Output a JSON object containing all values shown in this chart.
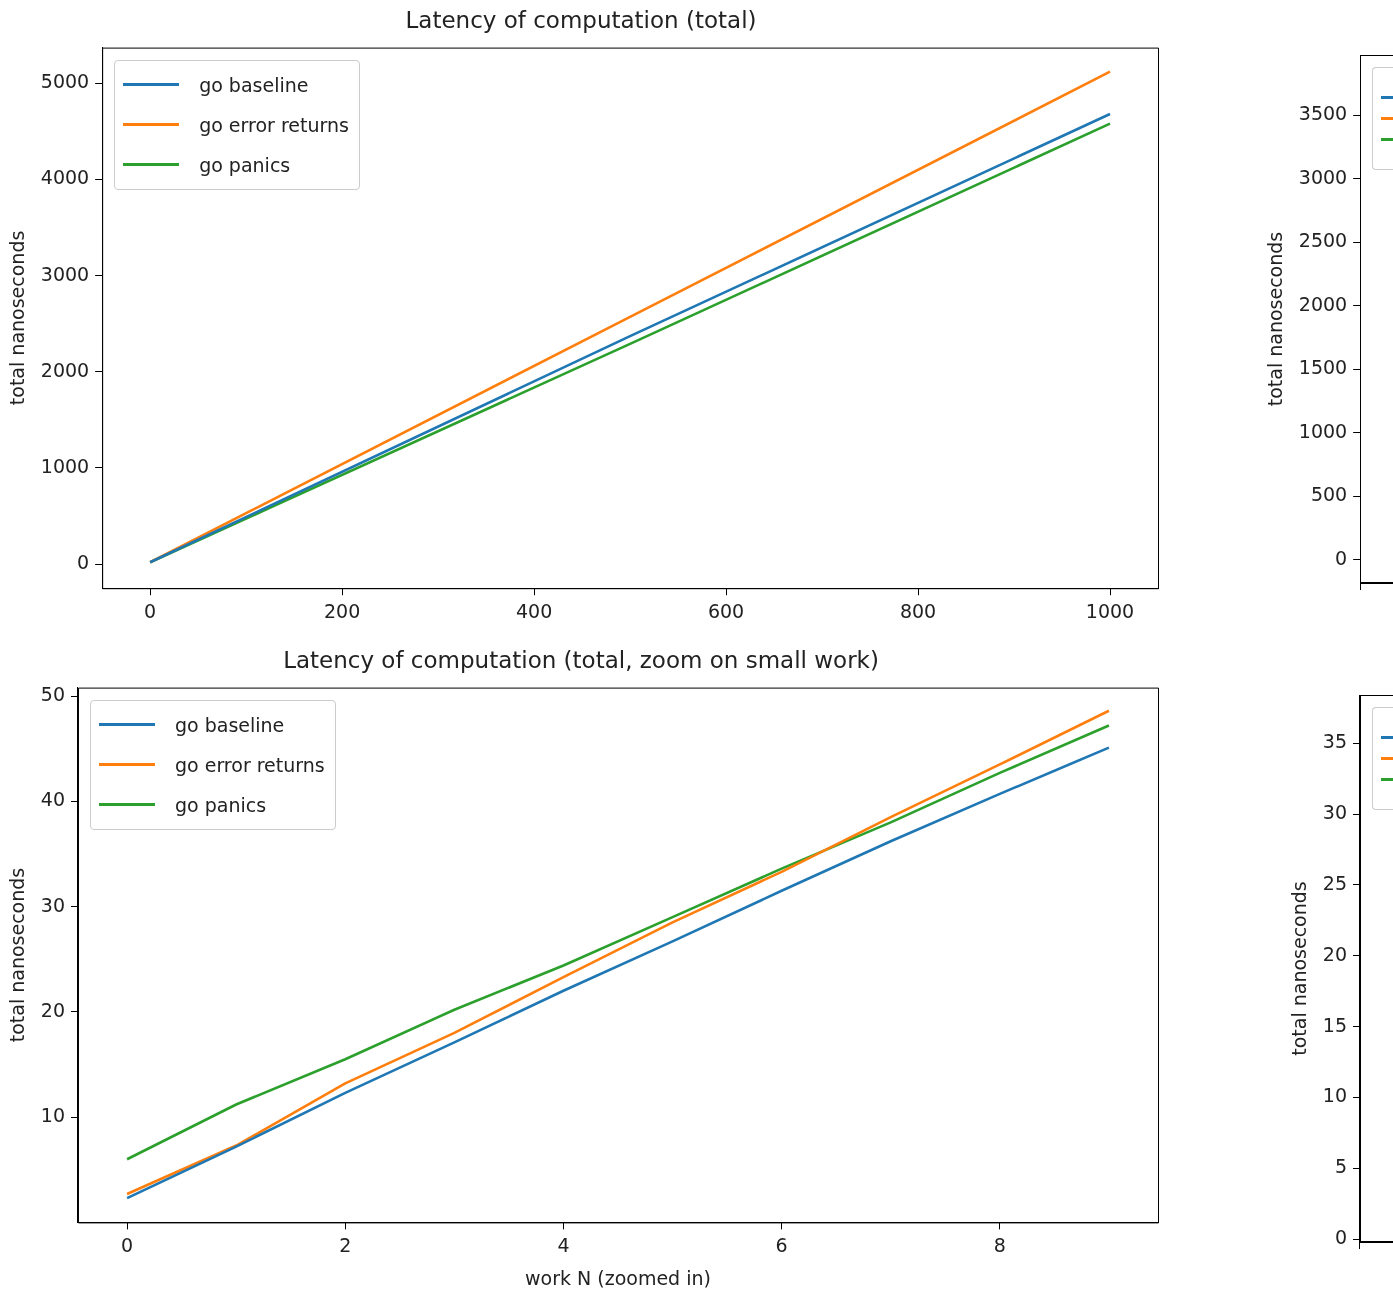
{
  "chart_data": [
    {
      "type": "line",
      "title": "Latency of computation (total)",
      "ylabel": "total nanoseconds",
      "x": [
        0,
        500,
        1000
      ],
      "xlim": [
        -50,
        1050
      ],
      "xticks": [
        0,
        200,
        400,
        600,
        800,
        1000
      ],
      "ylim": [
        -250,
        5370
      ],
      "yticks": [
        0,
        1000,
        2000,
        3000,
        4000,
        5000
      ],
      "grid": false,
      "legend": "top left",
      "marker": "none",
      "line_style": "solid",
      "series": [
        {
          "name": "go baseline",
          "color": "#1f77b4",
          "values": [
            20,
            2370,
            4680
          ]
        },
        {
          "name": "go error returns",
          "color": "#ff7f0e",
          "values": [
            20,
            2570,
            5120
          ]
        },
        {
          "name": "go panics",
          "color": "#2ca02c",
          "values": [
            20,
            2290,
            4580
          ]
        }
      ]
    },
    {
      "type": "line",
      "ylabel": "total nanoseconds",
      "categories": [
        null,
        null
      ],
      "ylim": [
        -181,
        3973
      ],
      "yticks": [
        0,
        500,
        1000,
        1500,
        2000,
        2500,
        3000,
        3500
      ],
      "tick_labels": "y"
    },
    {
      "type": "line",
      "title": "Latency of computation (total, zoom on small work)",
      "xlabel": "work N (zoomed in)",
      "ylabel": "total nanoseconds",
      "x": [
        0,
        1,
        2,
        3,
        4,
        5,
        6,
        7,
        8,
        9
      ],
      "xlim": [
        -0.45,
        9.45
      ],
      "xticks": [
        0,
        2,
        4,
        6,
        8
      ],
      "ylim": [
        0,
        50.8
      ],
      "yticks": [
        10,
        20,
        30,
        40,
        50
      ],
      "grid": false,
      "legend": "top left",
      "marker": "none",
      "line_style": "solid",
      "series": [
        {
          "name": "go baseline",
          "color": "#1f77b4",
          "values": [
            2.3,
            7.2,
            12.3,
            17.1,
            22.0,
            26.7,
            31.5,
            36.2,
            40.7,
            45.1
          ]
        },
        {
          "name": "go error returns",
          "color": "#ff7f0e",
          "values": [
            2.7,
            7.3,
            13.2,
            18.0,
            23.3,
            28.5,
            33.3,
            38.5,
            43.5,
            48.6
          ]
        },
        {
          "name": "go panics",
          "color": "#2ca02c",
          "values": [
            6.0,
            11.2,
            15.5,
            20.2,
            24.4,
            29.0,
            33.6,
            38.0,
            42.7,
            47.2
          ]
        }
      ]
    },
    {
      "type": "line",
      "ylabel": "total nanoseconds",
      "categories": [
        null,
        null
      ],
      "ylim": [
        -0.2,
        38.4
      ],
      "yticks": [
        0,
        5,
        10,
        15,
        20,
        25,
        30,
        35
      ],
      "tick_labels": "y"
    }
  ]
}
